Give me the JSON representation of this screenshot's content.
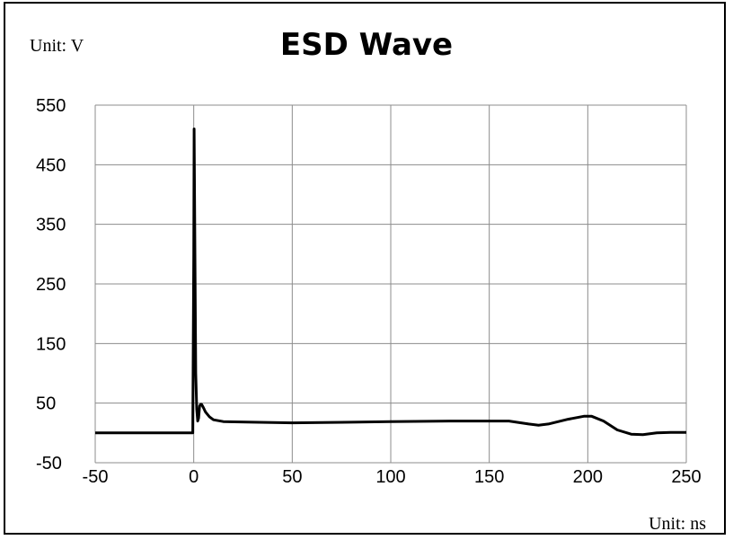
{
  "chart_data": {
    "type": "line",
    "title": "ESD Wave",
    "y_unit_label": "Unit: V",
    "x_unit_label": "Unit: ns",
    "xlim": [
      -50,
      250
    ],
    "ylim": [
      -50,
      550
    ],
    "x_ticks": [
      -50,
      0,
      50,
      100,
      150,
      200,
      250
    ],
    "y_ticks": [
      -50,
      50,
      150,
      250,
      350,
      450,
      550
    ],
    "y_tick_labels": [
      "-50",
      "50",
      "150",
      "250",
      "350",
      "450",
      "550"
    ],
    "x_tick_labels": [
      "-50",
      "0",
      "50",
      "100",
      "150",
      "200",
      "250"
    ],
    "grid": true,
    "series": [
      {
        "x": [
          -50,
          -0.5,
          0,
          0.2,
          0.6,
          1.0,
          1.5,
          2.0,
          2.5,
          3.0,
          3.5,
          4.0,
          5,
          6,
          8,
          10,
          15,
          30,
          50,
          80,
          100,
          130,
          150,
          160,
          170,
          175,
          180,
          190,
          198,
          202,
          208,
          215,
          222,
          228,
          235,
          242,
          250
        ],
        "y": [
          0,
          0,
          300,
          510,
          300,
          100,
          40,
          20,
          25,
          45,
          48,
          48,
          42,
          35,
          27,
          22,
          19,
          18,
          17,
          18,
          19,
          20,
          20,
          20,
          15,
          13,
          15,
          23,
          28,
          28,
          20,
          5,
          -2,
          -3,
          0,
          1,
          1
        ]
      }
    ]
  }
}
